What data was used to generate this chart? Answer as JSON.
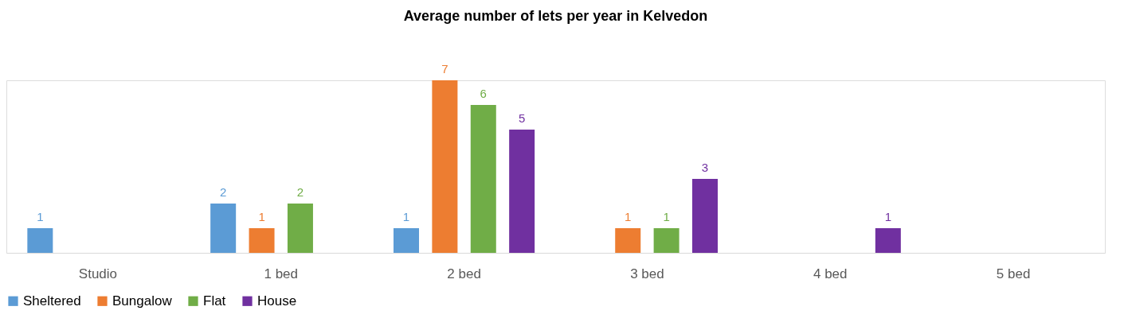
{
  "chart_data": {
    "type": "bar",
    "title": "Average number of lets per year in Kelvedon",
    "categories": [
      "Studio",
      "1 bed",
      "2 bed",
      "3 bed",
      "4 bed",
      "5 bed"
    ],
    "series": [
      {
        "name": "Sheltered",
        "color": "#5b9bd5",
        "values": [
          1,
          2,
          1,
          null,
          null,
          null
        ]
      },
      {
        "name": "Bungalow",
        "color": "#ed7d31",
        "values": [
          null,
          1,
          7,
          1,
          null,
          null
        ]
      },
      {
        "name": "Flat",
        "color": "#70ad47",
        "values": [
          null,
          2,
          6,
          1,
          null,
          null
        ]
      },
      {
        "name": "House",
        "color": "#7030a0",
        "values": [
          null,
          null,
          5,
          3,
          1,
          null
        ]
      }
    ],
    "data_labels": true,
    "legend": "bottom",
    "grid": false
  }
}
